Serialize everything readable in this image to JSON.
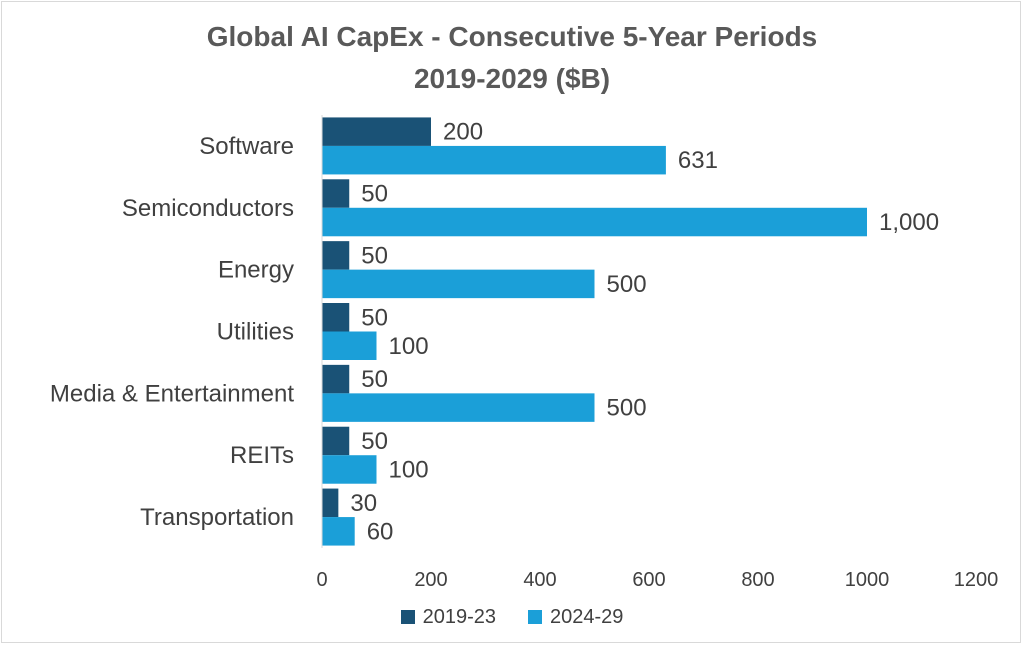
{
  "chart_data": {
    "type": "bar",
    "orientation": "horizontal",
    "title": "Global AI CapEx - Consecutive 5-Year Periods",
    "subtitle": "2019-2029 ($B)",
    "categories": [
      "Software",
      "Semiconductors",
      "Energy",
      "Utilities",
      "Media & Entertainment",
      "REITs",
      "Transportation"
    ],
    "series": [
      {
        "name": "2019-23",
        "color": "#1a5276",
        "values": [
          200,
          50,
          50,
          50,
          50,
          50,
          30
        ],
        "labels": [
          "200",
          "50",
          "50",
          "50",
          "50",
          "50",
          "30"
        ]
      },
      {
        "name": "2024-29",
        "color": "#1b9fd8",
        "values": [
          631,
          1000,
          500,
          100,
          500,
          100,
          60
        ],
        "labels": [
          "631",
          "1,000",
          "500",
          "100",
          "500",
          "100",
          "60"
        ]
      }
    ],
    "xlim": [
      0,
      1200
    ],
    "x_ticks": [
      "0",
      "200",
      "400",
      "600",
      "800",
      "1000",
      "1200"
    ],
    "grid": false,
    "legend_position": "bottom"
  }
}
